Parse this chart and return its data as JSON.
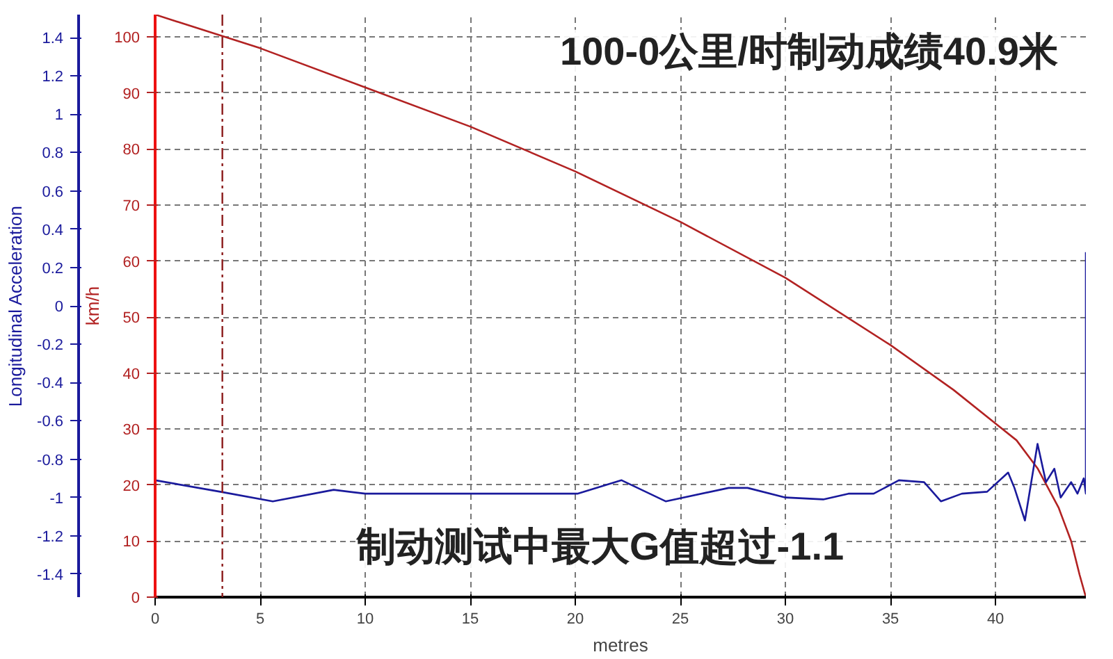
{
  "chart_data": {
    "type": "line",
    "xlabel": "metres",
    "ylabel": "km/h",
    "y2label": "Longitudinal Acceleration",
    "xlim": [
      0,
      44.3
    ],
    "xticks": [
      0,
      5,
      10,
      15,
      20,
      25,
      30,
      35,
      40
    ],
    "ylim": [
      0,
      104
    ],
    "yticks": [
      0,
      10,
      20,
      30,
      40,
      50,
      60,
      70,
      80,
      90,
      100
    ],
    "y2lim": [
      -1.52,
      1.52
    ],
    "y2ticks": [
      -1.4,
      -1.2,
      -1,
      -0.8,
      -0.6,
      -0.4,
      -0.2,
      0,
      0.2,
      0.4,
      0.6,
      0.8,
      1,
      1.2,
      1.4
    ],
    "grid": true,
    "line_style": "solid",
    "series": [
      {
        "color": "#b22222",
        "x": [
          0,
          5,
          10,
          15,
          20,
          25,
          30,
          35,
          38,
          40,
          41,
          42,
          43,
          43.6,
          44,
          44.3
        ],
        "values": [
          104,
          98,
          91,
          84,
          76,
          67,
          57,
          45,
          37,
          31,
          28,
          23,
          16,
          10,
          4,
          0
        ]
      },
      {
        "color": "#1a1a9c",
        "axis": "y2",
        "x": [
          0,
          3.1,
          5.6,
          8.5,
          10,
          15,
          20.1,
          22.2,
          24.3,
          27.3,
          28.2,
          30,
          31.8,
          33,
          34.2,
          35.4,
          36.6,
          37.4,
          38.4,
          39.6,
          40.6,
          40.9,
          41.4,
          42.0,
          42.4,
          42.8,
          43.1,
          43.6,
          43.9,
          44.2,
          44.3,
          44.3
        ],
        "values": [
          -0.91,
          -0.97,
          -1.02,
          -0.96,
          -0.98,
          -0.98,
          -0.98,
          -0.91,
          -1.02,
          -0.95,
          -0.95,
          -1.0,
          -1.01,
          -0.98,
          -0.98,
          -0.91,
          -0.92,
          -1.02,
          -0.98,
          -0.97,
          -0.87,
          -0.95,
          -1.12,
          -0.72,
          -0.92,
          -0.85,
          -1.0,
          -0.92,
          -0.98,
          -0.9,
          -0.98,
          0.28
        ]
      }
    ],
    "ref_lines": [
      {
        "axis": "x",
        "value": 3.2,
        "color": "#8b1a1a",
        "line_style": "dashed"
      }
    ],
    "annotations": [
      "100-0公里/时制动成绩40.9米",
      "制动测试中最大G值超过-1.1"
    ]
  }
}
